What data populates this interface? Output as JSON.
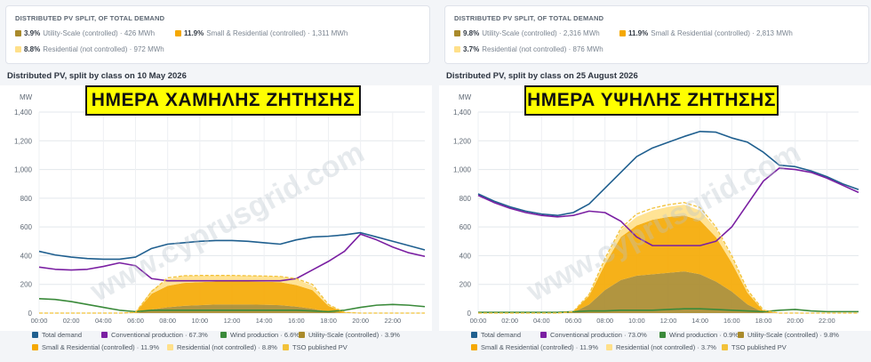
{
  "colors": {
    "total_demand": "#1f5f8f",
    "conventional": "#7a1fa2",
    "wind": "#3a8a3a",
    "utility": "#a98a2b",
    "small_res": "#f5a800",
    "res_nc": "#ffe08a",
    "tso": "#f2c23a",
    "banner_bg": "#ffff00"
  },
  "watermark_text": "www.cyprusgrid.com",
  "panels": [
    {
      "summary": {
        "title": "DISTRIBUTED PV SPLIT, OF TOTAL DEMAND",
        "items": [
          {
            "pct": "3.9%",
            "label": "Utility-Scale (controlled) · 426 MWh"
          },
          {
            "pct": "11.9%",
            "label": "Small & Residential (controlled) · 1,311 MWh"
          },
          {
            "pct": "8.8%",
            "label": "Residential (not controlled) · 972 MWh"
          }
        ]
      },
      "chart_title": "Distributed PV, split by class on 10 May 2026",
      "banner": "ΗΜΕΡΑ ΧΑΜΗΛΗΣ ΖΗΤΗΣΗΣ",
      "legend": [
        {
          "key": "total_demand",
          "label": "Total demand"
        },
        {
          "key": "conventional",
          "label": "Conventional production · 67.3%"
        },
        {
          "key": "wind",
          "label": "Wind production · 6.6%"
        },
        {
          "key": "utility",
          "label": "Utility-Scale (controlled) · 3.9%"
        },
        {
          "key": "small_res",
          "label": "Small & Residential (controlled) · 11.9%"
        },
        {
          "key": "res_nc",
          "label": "Residential (not controlled) · 8.8%"
        },
        {
          "key": "tso",
          "label": "TSO published PV"
        }
      ]
    },
    {
      "summary": {
        "title": "DISTRIBUTED PV SPLIT, OF TOTAL DEMAND",
        "items": [
          {
            "pct": "9.8%",
            "label": "Utility-Scale (controlled) · 2,316 MWh"
          },
          {
            "pct": "11.9%",
            "label": "Small & Residential (controlled) · 2,813 MWh"
          },
          {
            "pct": "3.7%",
            "label": "Residential (not controlled) · 876 MWh"
          }
        ]
      },
      "chart_title": "Distributed PV, split by class on 25 August 2026",
      "banner": "ΗΜΕΡΑ ΥΨΗΛΗΣ ΖΗΤΗΣΗΣ",
      "legend": [
        {
          "key": "total_demand",
          "label": "Total demand"
        },
        {
          "key": "conventional",
          "label": "Conventional production · 73.0%"
        },
        {
          "key": "wind",
          "label": "Wind production · 0.9%"
        },
        {
          "key": "utility",
          "label": "Utility-Scale (controlled) · 9.8%"
        },
        {
          "key": "small_res",
          "label": "Small & Residential (controlled) · 11.9%"
        },
        {
          "key": "res_nc",
          "label": "Residential (not controlled) · 3.7%"
        },
        {
          "key": "tso",
          "label": "TSO published PV"
        }
      ]
    }
  ],
  "chart_data": [
    {
      "type": "area",
      "title": "Distributed PV, split by class on 10 May 2026",
      "ylabel": "MW",
      "ylim": [
        0,
        1400
      ],
      "yticks": [
        0,
        200,
        400,
        600,
        800,
        1000,
        1200,
        1400
      ],
      "xlim": [
        0,
        24
      ],
      "xticks": [
        "00:00",
        "02:00",
        "04:00",
        "06:00",
        "08:00",
        "10:00",
        "12:00",
        "14:00",
        "16:00",
        "18:00",
        "20:00",
        "22:00"
      ],
      "grid": true,
      "x": [
        0,
        1,
        2,
        3,
        4,
        5,
        6,
        7,
        8,
        9,
        10,
        11,
        12,
        13,
        14,
        15,
        16,
        17,
        18,
        19,
        20,
        21,
        22,
        23,
        24
      ],
      "lines": [
        {
          "name": "Total demand",
          "values": [
            430,
            405,
            390,
            380,
            375,
            375,
            390,
            450,
            480,
            490,
            500,
            505,
            505,
            500,
            490,
            480,
            510,
            530,
            535,
            545,
            560,
            530,
            500,
            470,
            440
          ]
        },
        {
          "name": "Conventional production",
          "values": [
            320,
            305,
            300,
            305,
            325,
            350,
            330,
            240,
            225,
            225,
            225,
            225,
            225,
            225,
            225,
            225,
            240,
            300,
            360,
            430,
            550,
            510,
            460,
            420,
            395
          ]
        },
        {
          "name": "Wind production",
          "values": [
            100,
            95,
            80,
            60,
            40,
            20,
            10,
            20,
            20,
            20,
            20,
            20,
            20,
            20,
            20,
            20,
            20,
            15,
            10,
            20,
            40,
            55,
            60,
            55,
            45
          ]
        },
        {
          "name": "TSO published PV",
          "values": [
            0,
            0,
            0,
            0,
            0,
            0,
            5,
            150,
            245,
            260,
            262,
            262,
            262,
            260,
            258,
            255,
            240,
            200,
            60,
            5,
            0,
            0,
            0,
            0,
            0
          ]
        }
      ],
      "stacks": [
        {
          "name": "Utility-Scale (controlled)",
          "values": [
            0,
            0,
            0,
            0,
            0,
            0,
            0,
            25,
            40,
            50,
            55,
            60,
            60,
            60,
            58,
            55,
            45,
            30,
            10,
            0,
            0,
            0,
            0,
            0,
            0
          ]
        },
        {
          "name": "Small & Residential (controlled)",
          "values": [
            0,
            0,
            0,
            0,
            0,
            0,
            5,
            110,
            150,
            160,
            160,
            160,
            160,
            160,
            160,
            160,
            150,
            130,
            40,
            5,
            0,
            0,
            0,
            0,
            0
          ]
        },
        {
          "name": "Residential (not controlled)",
          "values": [
            0,
            0,
            0,
            0,
            0,
            0,
            0,
            25,
            45,
            50,
            45,
            42,
            42,
            40,
            40,
            40,
            42,
            30,
            8,
            0,
            0,
            0,
            0,
            0,
            0
          ]
        }
      ]
    },
    {
      "type": "area",
      "title": "Distributed PV, split by class on 25 August 2026",
      "ylabel": "MW",
      "ylim": [
        0,
        1400
      ],
      "yticks": [
        0,
        200,
        400,
        600,
        800,
        1000,
        1200,
        1400
      ],
      "xlim": [
        0,
        24
      ],
      "xticks": [
        "00:00",
        "02:00",
        "04:00",
        "06:00",
        "08:00",
        "10:00",
        "12:00",
        "14:00",
        "16:00",
        "18:00",
        "20:00",
        "22:00"
      ],
      "grid": true,
      "x": [
        0,
        1,
        2,
        3,
        4,
        5,
        6,
        7,
        8,
        9,
        10,
        11,
        12,
        13,
        14,
        15,
        16,
        17,
        18,
        19,
        20,
        21,
        22,
        23,
        24
      ],
      "lines": [
        {
          "name": "Total demand",
          "values": [
            830,
            780,
            740,
            710,
            690,
            680,
            700,
            760,
            870,
            980,
            1090,
            1150,
            1190,
            1230,
            1265,
            1260,
            1220,
            1190,
            1120,
            1030,
            1020,
            990,
            950,
            900,
            860
          ]
        },
        {
          "name": "Conventional production",
          "values": [
            820,
            770,
            730,
            700,
            680,
            670,
            680,
            710,
            700,
            640,
            530,
            470,
            470,
            470,
            470,
            500,
            600,
            760,
            920,
            1010,
            1000,
            980,
            940,
            890,
            840
          ]
        },
        {
          "name": "Wind production",
          "values": [
            5,
            5,
            5,
            5,
            5,
            5,
            10,
            15,
            15,
            20,
            20,
            20,
            25,
            30,
            30,
            25,
            20,
            15,
            10,
            20,
            25,
            15,
            10,
            10,
            10
          ]
        },
        {
          "name": "TSO published PV",
          "values": [
            0,
            0,
            0,
            0,
            0,
            0,
            10,
            130,
            380,
            590,
            690,
            730,
            755,
            770,
            735,
            600,
            400,
            160,
            20,
            0,
            0,
            0,
            0,
            0,
            0
          ]
        }
      ],
      "stacks": [
        {
          "name": "Utility-Scale (controlled)",
          "values": [
            0,
            0,
            0,
            0,
            0,
            0,
            5,
            60,
            160,
            230,
            260,
            270,
            280,
            290,
            270,
            220,
            150,
            60,
            5,
            0,
            0,
            0,
            0,
            0,
            0
          ]
        },
        {
          "name": "Small & Residential (controlled)",
          "values": [
            0,
            0,
            0,
            0,
            0,
            0,
            5,
            60,
            180,
            300,
            350,
            380,
            390,
            390,
            375,
            310,
            200,
            80,
            10,
            0,
            0,
            0,
            0,
            0,
            0
          ]
        },
        {
          "name": "Residential (not controlled)",
          "values": [
            0,
            0,
            0,
            0,
            0,
            0,
            0,
            10,
            30,
            50,
            60,
            65,
            70,
            75,
            70,
            60,
            40,
            15,
            2,
            0,
            0,
            0,
            0,
            0,
            0
          ]
        }
      ]
    }
  ]
}
